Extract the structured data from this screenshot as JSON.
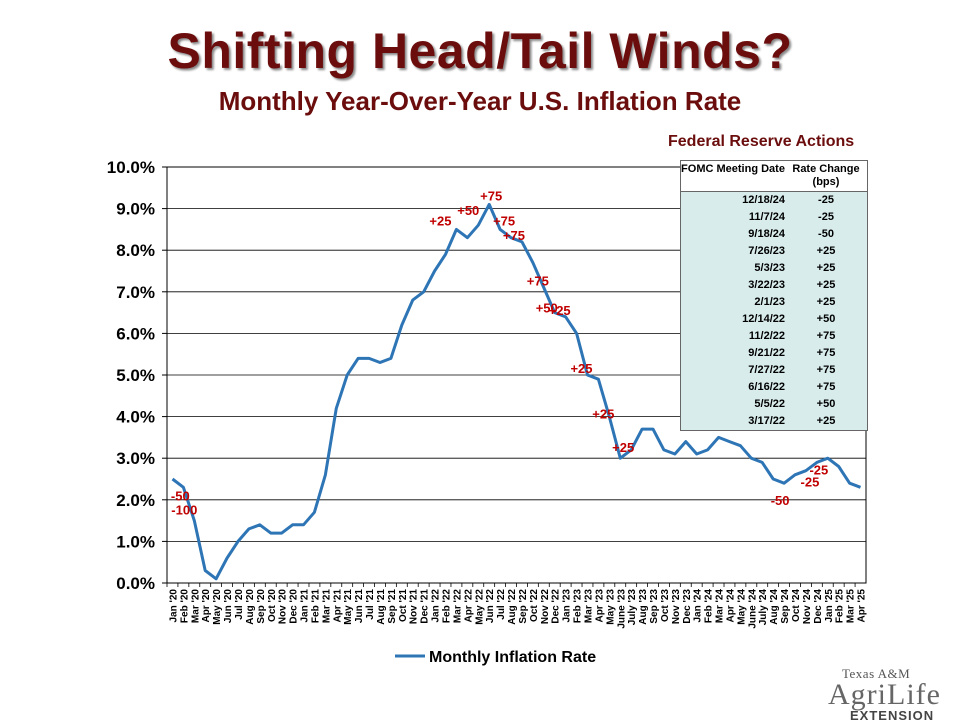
{
  "title": "Shifting Head/Tail Winds?",
  "subtitle": "Monthly Year-Over-Year U.S. Inflation Rate",
  "fed_table": {
    "title": "Federal Reserve Actions",
    "col1_header": "FOMC Meeting Date",
    "col2_header": "Rate Change (bps)",
    "rows": [
      {
        "date": "12/18/24",
        "change": "-25"
      },
      {
        "date": "11/7/24",
        "change": "-25"
      },
      {
        "date": "9/18/24",
        "change": "-50"
      },
      {
        "date": "7/26/23",
        "change": "+25"
      },
      {
        "date": "5/3/23",
        "change": "+25"
      },
      {
        "date": "3/22/23",
        "change": "+25"
      },
      {
        "date": "2/1/23",
        "change": "+25"
      },
      {
        "date": "12/14/22",
        "change": "+50"
      },
      {
        "date": "11/2/22",
        "change": "+75"
      },
      {
        "date": "9/21/22",
        "change": "+75"
      },
      {
        "date": "7/27/22",
        "change": "+75"
      },
      {
        "date": "6/16/22",
        "change": "+75"
      },
      {
        "date": "5/5/22",
        "change": "+50"
      },
      {
        "date": "3/17/22",
        "change": "+25"
      }
    ]
  },
  "logo": {
    "line1": "Texas A&M",
    "line2": "AgriLife",
    "line3": "EXTENSION"
  },
  "colors": {
    "line": "#2e75b6",
    "annotation": "#c00000",
    "title": "#6b0d0d",
    "table_bg": "#d8ecec"
  },
  "chart_data": {
    "type": "line",
    "categories": [
      "Jan '20",
      "Feb '20",
      "Mar '20",
      "Apr '20",
      "May '20",
      "Jun '20",
      "Jul '20",
      "Aug '20",
      "Sep '20",
      "Oct '20",
      "Nov '20",
      "Dec '20",
      "Jan '21",
      "Feb '21",
      "Mar '21",
      "Apr '21",
      "May '21",
      "Jun '21",
      "Jul '21",
      "Aug '21",
      "Sep '21",
      "Oct '21",
      "Nov '21",
      "Dec '21",
      "Jan '22",
      "Feb '22",
      "Mar '22",
      "Apr '22",
      "May '22",
      "Jun '22",
      "Jul '22",
      "Aug '22",
      "Sep '22",
      "Oct '22",
      "Nov '22",
      "Dec '22",
      "Jan '23",
      "Feb '23",
      "Mar '23",
      "Apr '23",
      "May '23",
      "June '23",
      "July '23",
      "Aug '23",
      "Sep '23",
      "Oct '23",
      "Nov '23",
      "Dec '23",
      "Jan '24",
      "Feb '24",
      "Mar '24",
      "Apr '24",
      "May '24",
      "June '24",
      "July '24",
      "Aug '24",
      "Sep '24",
      "Oct '24",
      "Nov '24",
      "Dec '24",
      "Jan '25",
      "Feb '25",
      "Mar '25",
      "Apr '25"
    ],
    "series": [
      {
        "name": "Monthly Inflation Rate",
        "values": [
          2.5,
          2.3,
          1.5,
          0.3,
          0.1,
          0.6,
          1.0,
          1.3,
          1.4,
          1.2,
          1.2,
          1.4,
          1.4,
          1.7,
          2.6,
          4.2,
          5.0,
          5.4,
          5.4,
          5.3,
          5.4,
          6.2,
          6.8,
          7.0,
          7.5,
          7.9,
          8.5,
          8.3,
          8.6,
          9.1,
          8.5,
          8.3,
          8.2,
          7.7,
          7.1,
          6.5,
          6.4,
          6.0,
          5.0,
          4.9,
          4.0,
          3.0,
          3.2,
          3.7,
          3.7,
          3.2,
          3.1,
          3.4,
          3.1,
          3.2,
          3.5,
          3.4,
          3.3,
          3.0,
          2.9,
          2.5,
          2.4,
          2.6,
          2.7,
          2.9,
          3.0,
          2.8,
          2.4,
          2.3
        ]
      }
    ],
    "ylim": [
      0,
      10
    ],
    "y_ticks": [
      "0.0%",
      "1.0%",
      "2.0%",
      "3.0%",
      "4.0%",
      "5.0%",
      "6.0%",
      "7.0%",
      "8.0%",
      "9.0%",
      "10.0%"
    ],
    "grid": true,
    "legend": "bottom",
    "annotations": [
      {
        "text": "-50",
        "index": 2
      },
      {
        "text": "-100",
        "index": 2
      },
      {
        "text": "+25",
        "index": 26
      },
      {
        "text": "+50",
        "index": 28
      },
      {
        "text": "+75",
        "index": 29
      },
      {
        "text": "+75",
        "index": 30
      },
      {
        "text": "+75",
        "index": 32
      },
      {
        "text": "+75",
        "index": 34
      },
      {
        "text": "+50",
        "index": 35
      },
      {
        "text": "+25",
        "index": 36
      },
      {
        "text": "+25",
        "index": 38
      },
      {
        "text": "+25",
        "index": 40
      },
      {
        "text": "+25",
        "index": 42
      },
      {
        "text": "-50",
        "index": 56
      },
      {
        "text": "-25",
        "index": 58
      },
      {
        "text": "-25",
        "index": 59
      }
    ]
  }
}
